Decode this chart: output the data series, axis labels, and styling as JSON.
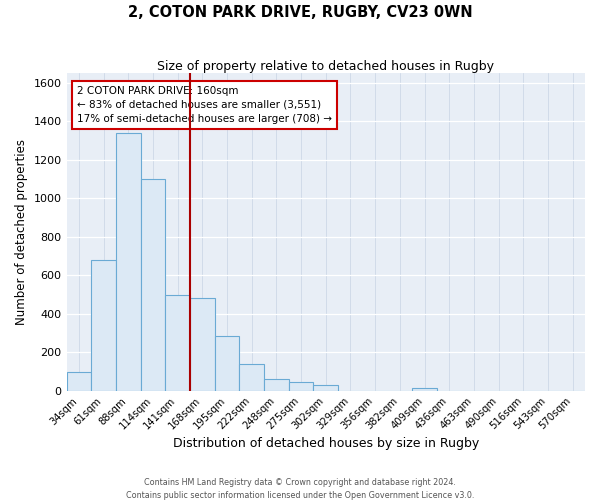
{
  "title": "2, COTON PARK DRIVE, RUGBY, CV23 0WN",
  "subtitle": "Size of property relative to detached houses in Rugby",
  "xlabel": "Distribution of detached houses by size in Rugby",
  "ylabel": "Number of detached properties",
  "bar_labels": [
    "34sqm",
    "61sqm",
    "88sqm",
    "114sqm",
    "141sqm",
    "168sqm",
    "195sqm",
    "222sqm",
    "248sqm",
    "275sqm",
    "302sqm",
    "329sqm",
    "356sqm",
    "382sqm",
    "409sqm",
    "436sqm",
    "463sqm",
    "490sqm",
    "516sqm",
    "543sqm",
    "570sqm"
  ],
  "bar_values": [
    100,
    680,
    1340,
    1100,
    500,
    480,
    285,
    140,
    60,
    45,
    30,
    0,
    0,
    0,
    15,
    0,
    0,
    0,
    0,
    0,
    0
  ],
  "bar_color": "#dce9f5",
  "bar_edge_color": "#6aaad4",
  "vline_color": "#aa0000",
  "annotation_text": "2 COTON PARK DRIVE: 160sqm\n← 83% of detached houses are smaller (3,551)\n17% of semi-detached houses are larger (708) →",
  "annotation_box_color": "#ffffff",
  "annotation_box_edge": "#cc0000",
  "ylim": [
    0,
    1650
  ],
  "yticks": [
    0,
    200,
    400,
    600,
    800,
    1000,
    1200,
    1400,
    1600
  ],
  "footer1": "Contains HM Land Registry data © Crown copyright and database right 2024.",
  "footer2": "Contains public sector information licensed under the Open Government Licence v3.0."
}
